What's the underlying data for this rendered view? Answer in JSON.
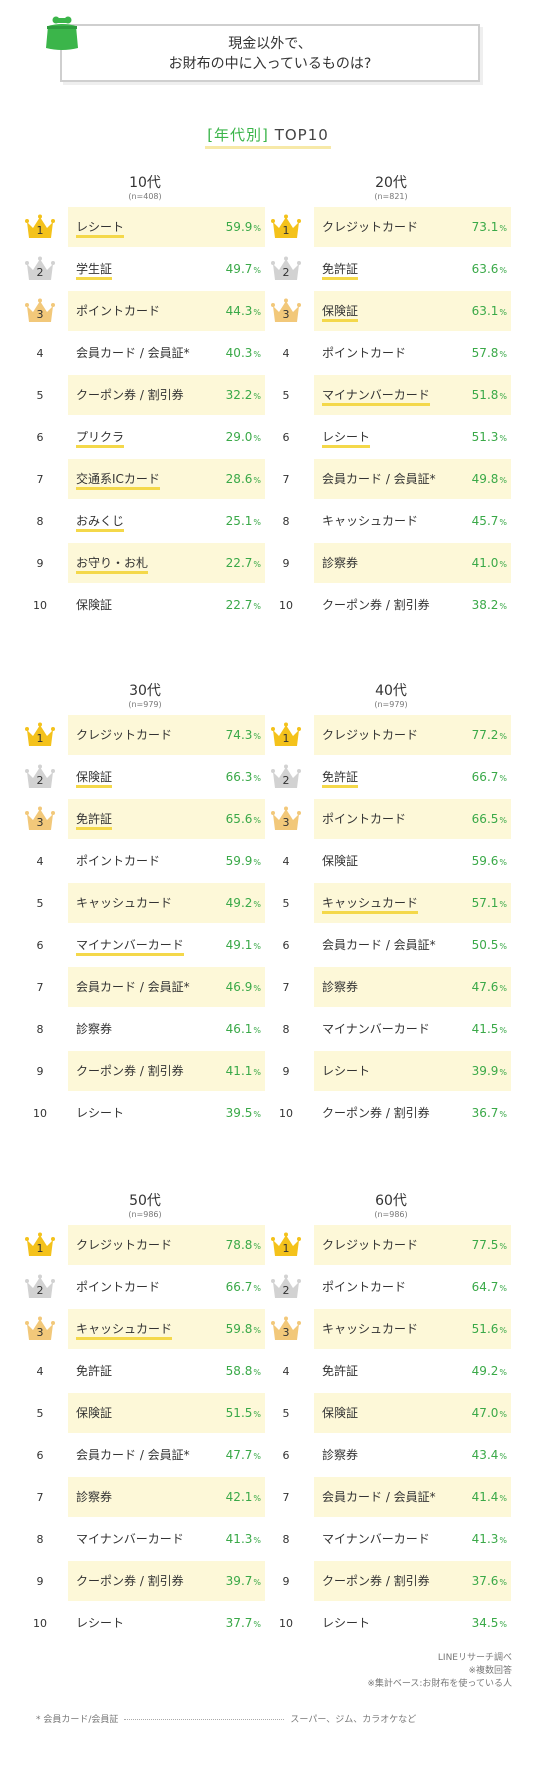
{
  "header": {
    "title_line1": "現金以外で、",
    "title_line2": "お財布の中に入っているものは?"
  },
  "subtitle": {
    "tag": "[年代別]",
    "text": "TOP10"
  },
  "colors": {
    "accent": "#3bb54a",
    "highlight": "#fdf8d8",
    "gold": "#f4c21b",
    "silver": "#d2d2d2",
    "bronze": "#f2c87a"
  },
  "groups": [
    {
      "age": "10代",
      "n": "(n=408)",
      "items": [
        {
          "rank": "1",
          "label": "レシート",
          "pct": "59.9",
          "underline": true,
          "highlight": true
        },
        {
          "rank": "2",
          "label": "学生証",
          "pct": "49.7",
          "underline": true,
          "highlight": false
        },
        {
          "rank": "3",
          "label": "ポイントカード",
          "pct": "44.3",
          "underline": false,
          "highlight": true
        },
        {
          "rank": "4",
          "label": "会員カード / 会員証*",
          "pct": "40.3",
          "underline": false,
          "highlight": false
        },
        {
          "rank": "5",
          "label": "クーポン券 / 割引券",
          "pct": "32.2",
          "underline": false,
          "highlight": true
        },
        {
          "rank": "6",
          "label": "プリクラ",
          "pct": "29.0",
          "underline": true,
          "highlight": false
        },
        {
          "rank": "7",
          "label": "交通系ICカード",
          "pct": "28.6",
          "underline": true,
          "highlight": true
        },
        {
          "rank": "8",
          "label": "おみくじ",
          "pct": "25.1",
          "underline": true,
          "highlight": false
        },
        {
          "rank": "9",
          "label": "お守り・お札",
          "pct": "22.7",
          "underline": true,
          "highlight": true
        },
        {
          "rank": "10",
          "label": "保険証",
          "pct": "22.7",
          "underline": false,
          "highlight": false
        }
      ]
    },
    {
      "age": "20代",
      "n": "(n=821)",
      "items": [
        {
          "rank": "1",
          "label": "クレジットカード",
          "pct": "73.1",
          "underline": false,
          "highlight": true
        },
        {
          "rank": "2",
          "label": "免許証",
          "pct": "63.6",
          "underline": true,
          "highlight": false
        },
        {
          "rank": "3",
          "label": "保険証",
          "pct": "63.1",
          "underline": true,
          "highlight": true
        },
        {
          "rank": "4",
          "label": "ポイントカード",
          "pct": "57.8",
          "underline": false,
          "highlight": false
        },
        {
          "rank": "5",
          "label": "マイナンバーカード",
          "pct": "51.8",
          "underline": true,
          "highlight": true
        },
        {
          "rank": "6",
          "label": "レシート",
          "pct": "51.3",
          "underline": true,
          "highlight": false
        },
        {
          "rank": "7",
          "label": "会員カード / 会員証*",
          "pct": "49.8",
          "underline": false,
          "highlight": true
        },
        {
          "rank": "8",
          "label": "キャッシュカード",
          "pct": "45.7",
          "underline": false,
          "highlight": false
        },
        {
          "rank": "9",
          "label": "診察券",
          "pct": "41.0",
          "underline": false,
          "highlight": true
        },
        {
          "rank": "10",
          "label": "クーポン券 / 割引券",
          "pct": "38.2",
          "underline": false,
          "highlight": false
        }
      ]
    },
    {
      "age": "30代",
      "n": "(n=979)",
      "items": [
        {
          "rank": "1",
          "label": "クレジットカード",
          "pct": "74.3",
          "underline": false,
          "highlight": true
        },
        {
          "rank": "2",
          "label": "保険証",
          "pct": "66.3",
          "underline": true,
          "highlight": false
        },
        {
          "rank": "3",
          "label": "免許証",
          "pct": "65.6",
          "underline": true,
          "highlight": true
        },
        {
          "rank": "4",
          "label": "ポイントカード",
          "pct": "59.9",
          "underline": false,
          "highlight": false
        },
        {
          "rank": "5",
          "label": "キャッシュカード",
          "pct": "49.2",
          "underline": false,
          "highlight": true
        },
        {
          "rank": "6",
          "label": "マイナンバーカード",
          "pct": "49.1",
          "underline": true,
          "highlight": false
        },
        {
          "rank": "7",
          "label": "会員カード / 会員証*",
          "pct": "46.9",
          "underline": false,
          "highlight": true
        },
        {
          "rank": "8",
          "label": "診察券",
          "pct": "46.1",
          "underline": false,
          "highlight": false
        },
        {
          "rank": "9",
          "label": "クーポン券 / 割引券",
          "pct": "41.1",
          "underline": false,
          "highlight": true
        },
        {
          "rank": "10",
          "label": "レシート",
          "pct": "39.5",
          "underline": false,
          "highlight": false
        }
      ]
    },
    {
      "age": "40代",
      "n": "(n=979)",
      "items": [
        {
          "rank": "1",
          "label": "クレジットカード",
          "pct": "77.2",
          "underline": false,
          "highlight": true
        },
        {
          "rank": "2",
          "label": "免許証",
          "pct": "66.7",
          "underline": true,
          "highlight": false
        },
        {
          "rank": "3",
          "label": "ポイントカード",
          "pct": "66.5",
          "underline": false,
          "highlight": true
        },
        {
          "rank": "4",
          "label": "保険証",
          "pct": "59.6",
          "underline": false,
          "highlight": false
        },
        {
          "rank": "5",
          "label": "キャッシュカード",
          "pct": "57.1",
          "underline": true,
          "highlight": true
        },
        {
          "rank": "6",
          "label": "会員カード / 会員証*",
          "pct": "50.5",
          "underline": false,
          "highlight": false
        },
        {
          "rank": "7",
          "label": "診察券",
          "pct": "47.6",
          "underline": false,
          "highlight": true
        },
        {
          "rank": "8",
          "label": "マイナンバーカード",
          "pct": "41.5",
          "underline": false,
          "highlight": false
        },
        {
          "rank": "9",
          "label": "レシート",
          "pct": "39.9",
          "underline": false,
          "highlight": true
        },
        {
          "rank": "10",
          "label": "クーポン券 / 割引券",
          "pct": "36.7",
          "underline": false,
          "highlight": false
        }
      ]
    },
    {
      "age": "50代",
      "n": "(n=986)",
      "items": [
        {
          "rank": "1",
          "label": "クレジットカード",
          "pct": "78.8",
          "underline": false,
          "highlight": true
        },
        {
          "rank": "2",
          "label": "ポイントカード",
          "pct": "66.7",
          "underline": false,
          "highlight": false
        },
        {
          "rank": "3",
          "label": "キャッシュカード",
          "pct": "59.8",
          "underline": true,
          "highlight": true
        },
        {
          "rank": "4",
          "label": "免許証",
          "pct": "58.8",
          "underline": false,
          "highlight": false
        },
        {
          "rank": "5",
          "label": "保険証",
          "pct": "51.5",
          "underline": false,
          "highlight": true
        },
        {
          "rank": "6",
          "label": "会員カード / 会員証*",
          "pct": "47.7",
          "underline": false,
          "highlight": false
        },
        {
          "rank": "7",
          "label": "診察券",
          "pct": "42.1",
          "underline": false,
          "highlight": true
        },
        {
          "rank": "8",
          "label": "マイナンバーカード",
          "pct": "41.3",
          "underline": false,
          "highlight": false
        },
        {
          "rank": "9",
          "label": "クーポン券 / 割引券",
          "pct": "39.7",
          "underline": false,
          "highlight": true
        },
        {
          "rank": "10",
          "label": "レシート",
          "pct": "37.7",
          "underline": false,
          "highlight": false
        }
      ]
    },
    {
      "age": "60代",
      "n": "(n=986)",
      "items": [
        {
          "rank": "1",
          "label": "クレジットカード",
          "pct": "77.5",
          "underline": false,
          "highlight": true
        },
        {
          "rank": "2",
          "label": "ポイントカード",
          "pct": "64.7",
          "underline": false,
          "highlight": false
        },
        {
          "rank": "3",
          "label": "キャッシュカード",
          "pct": "51.6",
          "underline": false,
          "highlight": true
        },
        {
          "rank": "4",
          "label": "免許証",
          "pct": "49.2",
          "underline": false,
          "highlight": false
        },
        {
          "rank": "5",
          "label": "保険証",
          "pct": "47.0",
          "underline": false,
          "highlight": true
        },
        {
          "rank": "6",
          "label": "診察券",
          "pct": "43.4",
          "underline": false,
          "highlight": false
        },
        {
          "rank": "7",
          "label": "会員カード / 会員証*",
          "pct": "41.4",
          "underline": false,
          "highlight": true
        },
        {
          "rank": "8",
          "label": "マイナンバーカード",
          "pct": "41.3",
          "underline": false,
          "highlight": false
        },
        {
          "rank": "9",
          "label": "クーポン券 / 割引券",
          "pct": "37.6",
          "underline": false,
          "highlight": true
        },
        {
          "rank": "10",
          "label": "レシート",
          "pct": "34.5",
          "underline": false,
          "highlight": false
        }
      ]
    }
  ],
  "pct_unit": "%",
  "notes": {
    "line1": "LINEリサーチ調べ",
    "line2": "※複数回答",
    "line3": "※集計ベース:お財布を使っている人"
  },
  "footnote": {
    "term": "* 会員カード/会員証",
    "desc": "スーパー、ジム、カラオケなど"
  }
}
